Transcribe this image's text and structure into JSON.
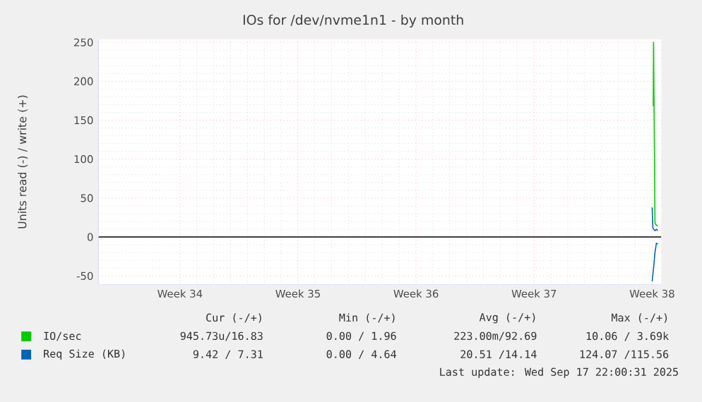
{
  "chart_data": {
    "type": "line",
    "title": "IOs for /dev/nvme1n1 - by month",
    "ylabel": "Units read (-) / write (+)",
    "xlim": [
      "2025-08-13T04:00",
      "2025-09-15T13:00"
    ],
    "ylim": [
      -61,
      254
    ],
    "xticks": [
      {
        "value": "2025-08-18",
        "label": "Week 34"
      },
      {
        "value": "2025-08-25",
        "label": "Week 35"
      },
      {
        "value": "2025-09-01",
        "label": "Week 36"
      },
      {
        "value": "2025-09-08",
        "label": "Week 37"
      },
      {
        "value": "2025-09-15",
        "label": "Week 38"
      }
    ],
    "yticks": [
      -50,
      0,
      50,
      100,
      150,
      200,
      250
    ],
    "grid": true,
    "legend": "bottom",
    "ref_lines": [
      {
        "axis": "y",
        "value": 0,
        "color": "#000000"
      }
    ],
    "series": [
      {
        "name": "IO/sec",
        "color": "#00cc00",
        "x": [
          "2025-09-15T01:40",
          "2025-09-15T02:00",
          "2025-09-15T04:00",
          "2025-09-15T06:00",
          "2025-09-15T08:00"
        ],
        "values": [
          168,
          250,
          18,
          15,
          14
        ]
      },
      {
        "name": "Req Size (KB)",
        "color": "#0066b3",
        "x": [
          "2025-09-15T00:00",
          "2025-09-15T01:00",
          "2025-09-15T02:00",
          "2025-09-15T04:00",
          "2025-09-15T06:00",
          "2025-09-15T08:00"
        ],
        "values": [
          38,
          12,
          10,
          8,
          10,
          8
        ]
      },
      {
        "color": "#0066b3",
        "x": [
          "2025-09-15T00:00",
          "2025-09-15T02:00",
          "2025-09-15T04:00",
          "2025-09-15T06:00",
          "2025-09-15T08:00"
        ],
        "values": [
          -57,
          -40,
          -20,
          -8,
          -9
        ]
      }
    ],
    "annotations": [
      "Cur (-/+)",
      "Min (-/+)",
      "Avg (-/+)",
      "Max (-/+)",
      "945.73u/16.83",
      "0.00 / 1.96",
      "223.00m/92.69",
      "10.06 / 3.69k",
      "9.42 / 7.31",
      "0.00 / 4.64",
      "20.51 /14.14",
      "124.07 /115.56",
      "Last update: Wed Sep 17 22:00:31 2025"
    ]
  }
}
